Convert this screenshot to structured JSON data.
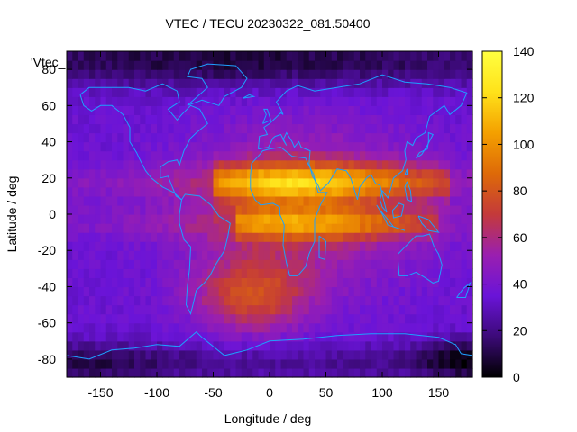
{
  "chart_data": {
    "type": "heatmap",
    "title": "VTEC / TECU 20230322_081.50400",
    "xlabel": "Longitude / deg",
    "ylabel": "Latitude / deg",
    "xlim": [
      -180,
      180
    ],
    "ylim": [
      -90,
      90
    ],
    "x_ticks": [
      -150,
      -100,
      -50,
      0,
      50,
      100,
      150
    ],
    "y_ticks": [
      -80,
      -60,
      -40,
      -20,
      0,
      20,
      40,
      60,
      80
    ],
    "legend_label": "'Vtec_",
    "colorbar": {
      "range": [
        0,
        140
      ],
      "ticks": [
        0,
        20,
        40,
        60,
        80,
        100,
        120,
        140
      ],
      "palette": [
        "#000000",
        "#3c0a78",
        "#6a14d8",
        "#9a1fb0",
        "#c43a3a",
        "#de6a08",
        "#f4a000",
        "#ffe21a",
        "#ffff40"
      ]
    },
    "field_features": {
      "background_level": 35,
      "polar_minimum_level": 8,
      "crest_north": {
        "lat": 18,
        "lon_range": [
          -50,
          160
        ],
        "peak_level": 120
      },
      "crest_south": {
        "lat": -5,
        "lon_range": [
          -30,
          150
        ],
        "peak_level": 110
      },
      "southern_lobe": {
        "lat": -45,
        "lon": -15,
        "peak_level": 75
      }
    },
    "coastline_color": "#1ea0ff"
  }
}
